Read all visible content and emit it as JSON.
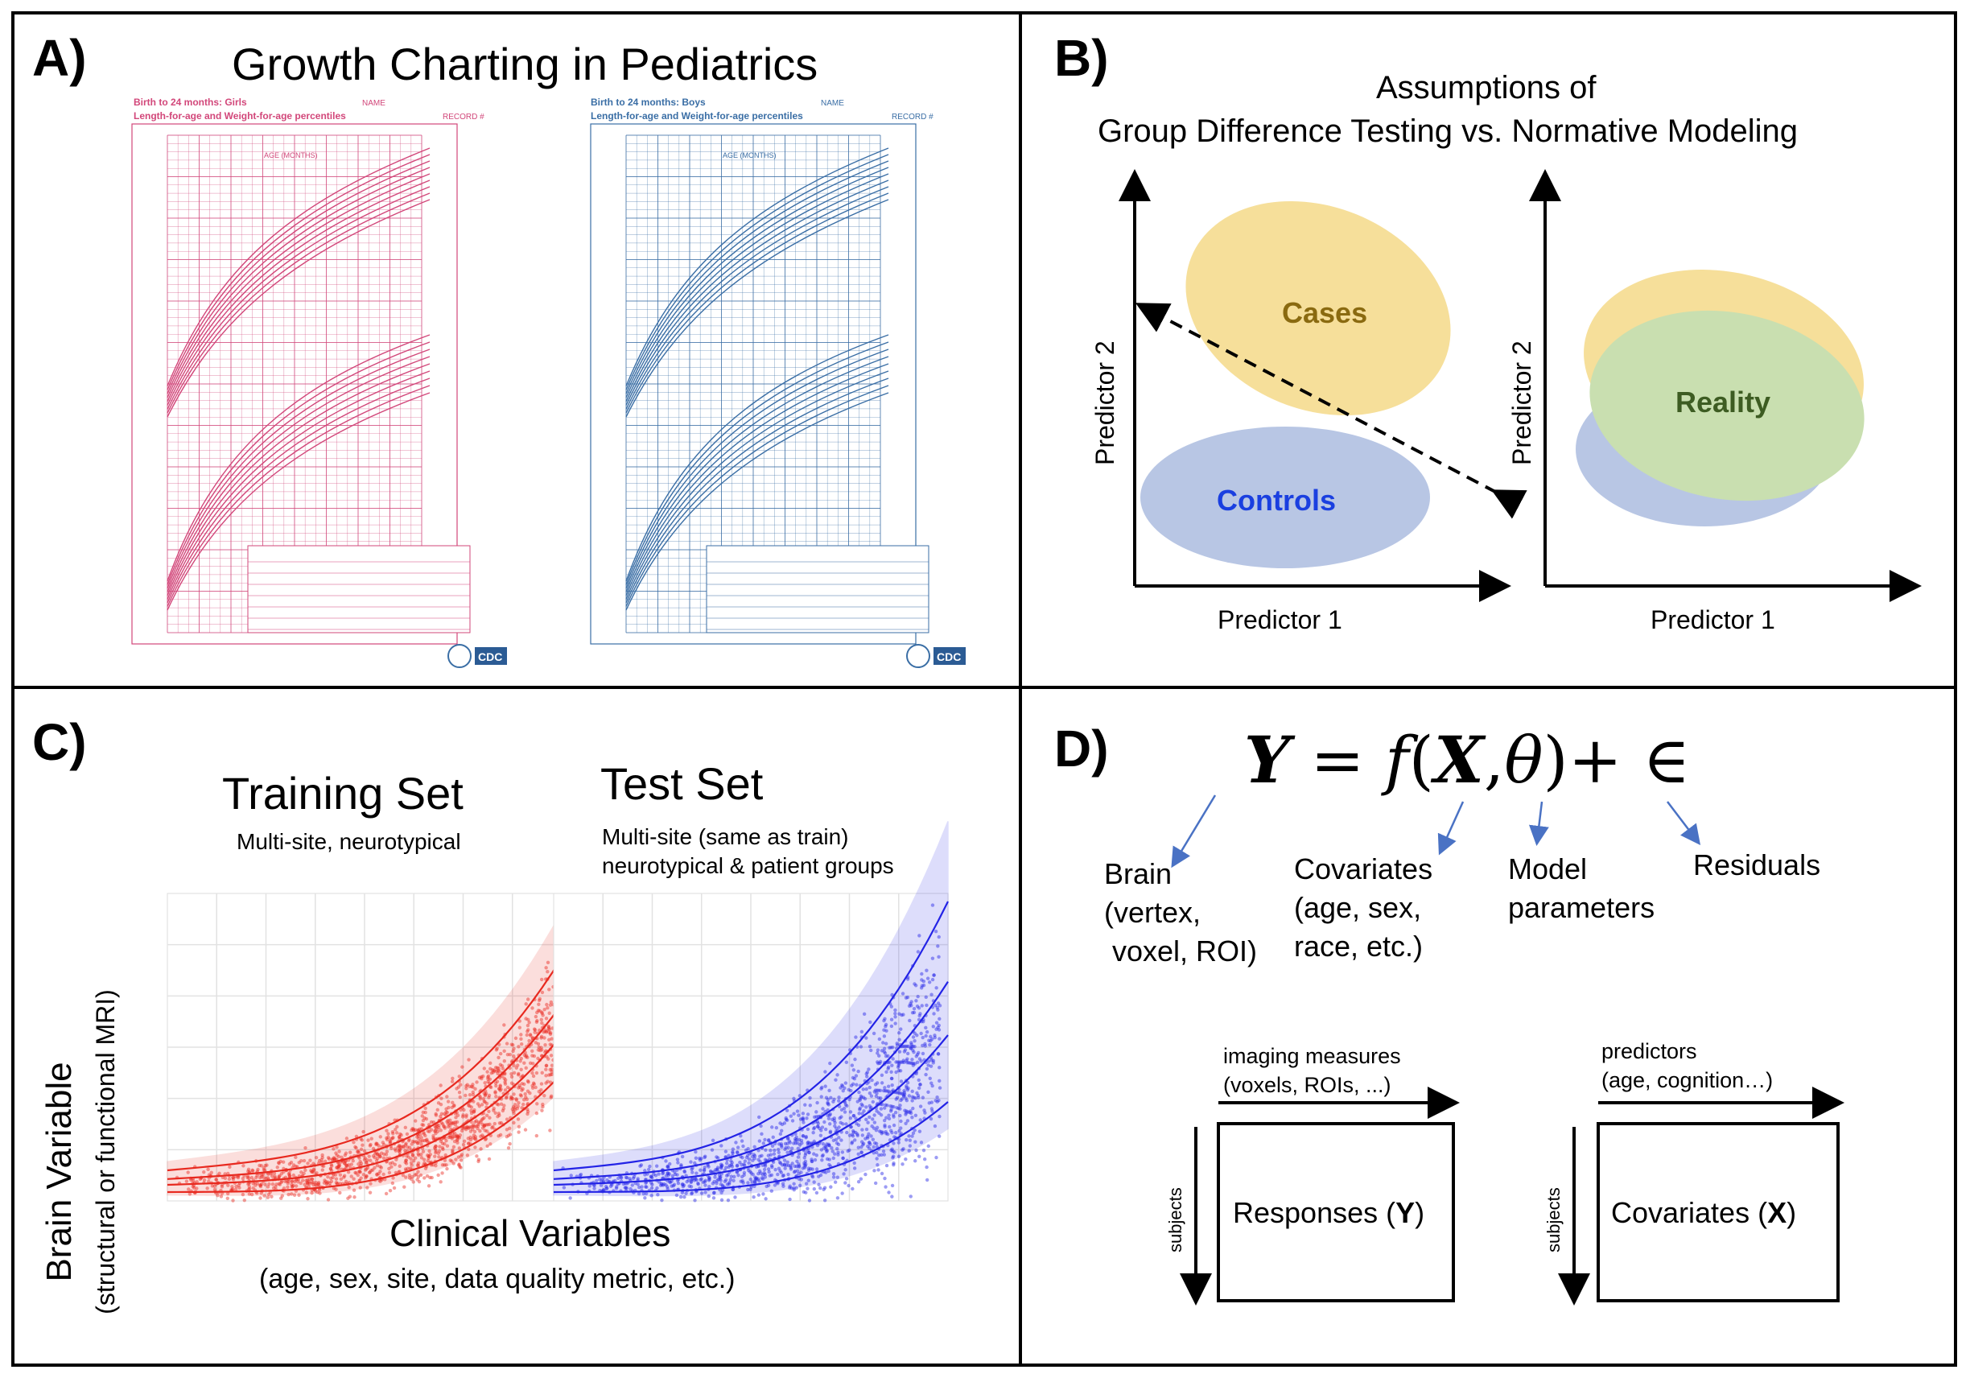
{
  "panel_a": {
    "label": "A)",
    "title": "Growth Charting in Pediatrics",
    "girls_chart": {
      "header_line1": "Birth to 24 months: Girls",
      "header_line2": "Length-for-age and Weight-for-age percentiles",
      "name_label": "NAME",
      "record_label": "RECORD #",
      "age_label": "AGE (MONTHS)",
      "logo": "CDC",
      "color": "#d2477a"
    },
    "boys_chart": {
      "header_line1": "Birth to 24 months: Boys",
      "header_line2": "Length-for-age and Weight-for-age percentiles",
      "name_label": "NAME",
      "record_label": "RECORD #",
      "age_label": "AGE (MONTHS)",
      "logo": "CDC",
      "color": "#3a6ea5"
    }
  },
  "panel_b": {
    "label": "B)",
    "title_line1": "Assumptions of",
    "title_line2": "Group Difference Testing vs. Normative Modeling",
    "left_plot": {
      "xlabel": "Predictor 1",
      "ylabel": "Predictor 2",
      "cases_label": "Cases",
      "controls_label": "Controls"
    },
    "right_plot": {
      "xlabel": "Predictor 1",
      "ylabel": "Predictor 2",
      "reality_label": "Reality"
    },
    "colors": {
      "cases_fill": "#f6df9a",
      "cases_text": "#8a6a10",
      "controls_fill": "#b8c6e4",
      "controls_text": "#1a3fe0",
      "reality_fill": "#c9dfb0",
      "reality_text": "#3d5c22"
    }
  },
  "panel_c": {
    "label": "C)",
    "training_title": "Training Set",
    "training_subtitle": "Multi-site, neurotypical",
    "test_title": "Test Set",
    "test_subtitle_line1": "Multi-site (same as train)",
    "test_subtitle_line2": "neurotypical & patient groups",
    "ylabel_line1": "Brain Variable",
    "ylabel_line2": "(structural or functional MRI)",
    "xlabel_line1": "Clinical Variables",
    "xlabel_line2": "(age, sex, site, data quality metric, etc.)",
    "colors": {
      "training": "#e8291f",
      "test": "#2323e6"
    }
  },
  "panel_d": {
    "label": "D)",
    "equation": {
      "Y": "Y",
      "eq": "=",
      "f": "f",
      "open": "(",
      "X": "X",
      "comma": ",",
      "theta": "θ",
      "close": ")",
      "plus": "+",
      "eps": "∈"
    },
    "brain_label": [
      "Brain",
      "(vertex,",
      "voxel, ROI)"
    ],
    "covariates_label": [
      "Covariates",
      "(age, sex,",
      "race, etc.)"
    ],
    "model_label": [
      "Model",
      "parameters"
    ],
    "residuals_label": "Residuals",
    "imaging_label": [
      "imaging measures",
      "(voxels, ROIs, ...)"
    ],
    "predictors_label": [
      "predictors",
      "(age, cognition…)"
    ],
    "subjects_label": "subjects",
    "responses_box": {
      "text": "Responses (",
      "bold": "Y",
      "end": ")"
    },
    "covariates_box": {
      "text": "Covariates (",
      "bold": "X",
      "end": ")"
    },
    "arrow_color": "#4a72c4"
  }
}
